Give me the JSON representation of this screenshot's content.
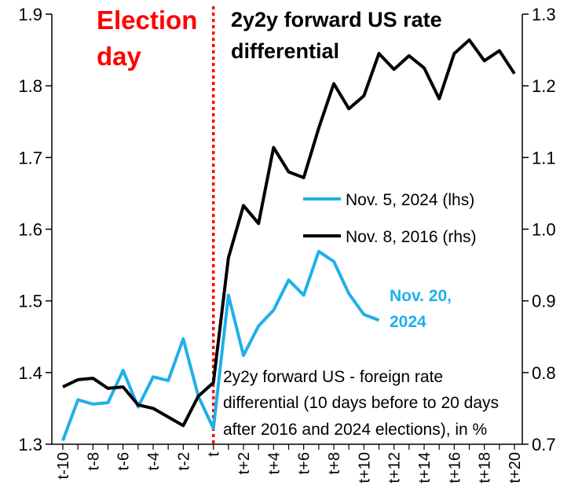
{
  "chart_data": {
    "type": "line",
    "title": "2y2y forward US rate differential",
    "categories": [
      "t-10",
      "t-9",
      "t-8",
      "t-7",
      "t-6",
      "t-5",
      "t-4",
      "t-3",
      "t-2",
      "t-1",
      "t",
      "t+1",
      "t+2",
      "t+3",
      "t+4",
      "t+5",
      "t+6",
      "t+7",
      "t+8",
      "t+9",
      "t+10",
      "t+11",
      "t+12",
      "t+13",
      "t+14",
      "t+15",
      "t+16",
      "t+17",
      "t+18",
      "t+19",
      "t+20"
    ],
    "x_tick_labels": [
      "t-10",
      "t-8",
      "t-6",
      "t-4",
      "t-2",
      "t",
      "t+2",
      "t+4",
      "t+6",
      "t+8",
      "t+10",
      "t+12",
      "t+14",
      "t+16",
      "t+18",
      "t+20"
    ],
    "y_left": {
      "min": 1.3,
      "max": 1.9,
      "step": 0.1,
      "tick_labels": [
        "1.3",
        "1.4",
        "1.5",
        "1.6",
        "1.7",
        "1.8",
        "1.9"
      ]
    },
    "y_right": {
      "min": 0.7,
      "max": 1.3,
      "step": 0.1,
      "tick_labels": [
        "0.7",
        "0.8",
        "0.9",
        "1.0",
        "1.1",
        "1.2",
        "1.3"
      ]
    },
    "series": [
      {
        "name": "Nov. 5, 2024 (lhs)",
        "axis": "left",
        "color": "#1fb0ea",
        "values": [
          1.305,
          1.362,
          1.356,
          1.358,
          1.403,
          1.352,
          1.394,
          1.389,
          1.447,
          1.367,
          1.322,
          1.508,
          1.424,
          1.465,
          1.487,
          1.529,
          1.508,
          1.569,
          1.555,
          1.51,
          1.481,
          1.473,
          null,
          null,
          null,
          null,
          null,
          null,
          null,
          null,
          null
        ]
      },
      {
        "name": "Nov. 8, 2016 (rhs)",
        "axis": "right",
        "color": "#000000",
        "values": [
          0.78,
          0.79,
          0.792,
          0.778,
          0.78,
          0.755,
          0.75,
          0.738,
          0.726,
          0.767,
          0.786,
          0.96,
          1.033,
          1.008,
          1.114,
          1.08,
          1.072,
          1.141,
          1.203,
          1.168,
          1.186,
          1.245,
          1.223,
          1.242,
          1.225,
          1.182,
          1.245,
          1.264,
          1.235,
          1.249,
          1.217
        ]
      }
    ],
    "event_marker": {
      "label_line1": "Election",
      "label_line2": "day",
      "at": "t",
      "color": "#ff0000"
    },
    "annotation": {
      "line1": "Nov. 20,",
      "line2": "2024"
    },
    "note": {
      "line1": "2y2y forward US - foreign rate",
      "line2": "differential (10 days before to 20 days",
      "line3": "after 2016 and 2024 elections), in %"
    },
    "legend_position": "center-right",
    "grid": false
  },
  "title_line1": "2y2y forward US rate",
  "title_line2": "differential"
}
